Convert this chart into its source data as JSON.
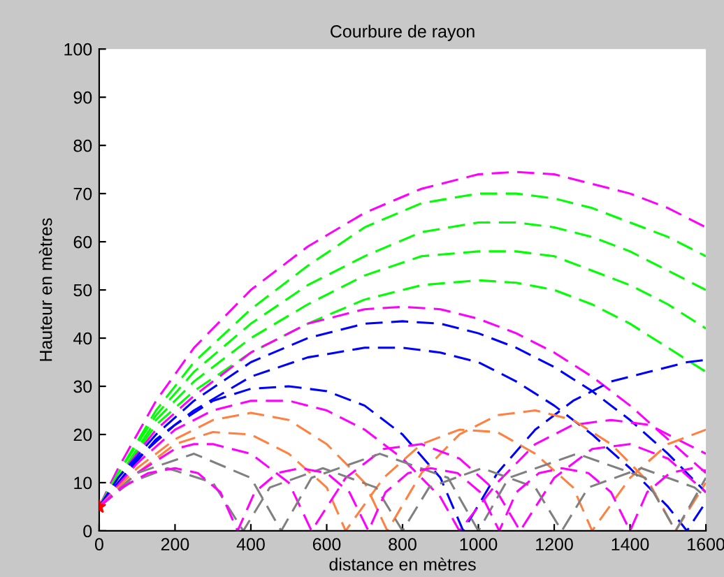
{
  "chart_data": {
    "type": "line",
    "title": "Courbure de rayon",
    "xlabel": "distance en mètres",
    "ylabel": "Hauteur en mètres",
    "xlim": [
      0,
      1600
    ],
    "ylim": [
      0,
      100
    ],
    "xticks": [
      0,
      200,
      400,
      600,
      800,
      1000,
      1200,
      1400,
      1600
    ],
    "yticks": [
      0,
      10,
      20,
      30,
      40,
      50,
      60,
      70,
      80,
      90,
      100
    ],
    "grid": false,
    "legend": false,
    "line_style": "dashed",
    "series": [
      {
        "color": "#ff00ff",
        "x": [
          0,
          50,
          150,
          250,
          400,
          550,
          700,
          850,
          1000,
          1100,
          1200,
          1300,
          1400,
          1500,
          1600
        ],
        "values": [
          5,
          13,
          27,
          38,
          50,
          59,
          66,
          71,
          74,
          74.5,
          74,
          72,
          70,
          67,
          63
        ]
      },
      {
        "color": "#00ff00",
        "x": [
          0,
          50,
          150,
          250,
          400,
          550,
          700,
          850,
          1000,
          1100,
          1200,
          1300,
          1400,
          1500,
          1600
        ],
        "values": [
          5,
          12,
          25,
          35,
          46,
          55,
          63,
          68,
          70,
          70,
          69,
          67,
          64,
          61,
          57
        ]
      },
      {
        "color": "#00ff00",
        "x": [
          0,
          50,
          150,
          250,
          400,
          550,
          700,
          850,
          1000,
          1100,
          1200,
          1300,
          1400,
          1500,
          1600
        ],
        "values": [
          5,
          12,
          24,
          33,
          43,
          51,
          57,
          62,
          64,
          64,
          63,
          61,
          58,
          54,
          50
        ]
      },
      {
        "color": "#00ff00",
        "x": [
          0,
          50,
          150,
          250,
          400,
          550,
          700,
          850,
          1000,
          1100,
          1200,
          1300,
          1400,
          1500,
          1600
        ],
        "values": [
          5,
          11,
          23,
          31,
          40,
          47,
          53,
          57,
          58,
          58,
          57,
          54,
          51,
          47,
          42
        ]
      },
      {
        "color": "#00ff00",
        "x": [
          0,
          50,
          150,
          250,
          400,
          550,
          700,
          850,
          1000,
          1100,
          1200,
          1300,
          1400,
          1500,
          1600
        ],
        "values": [
          5,
          11,
          22,
          29,
          37,
          43,
          48,
          51,
          52,
          51.5,
          50,
          47,
          43,
          38,
          33
        ]
      },
      {
        "color": "#ff00ff",
        "x": [
          0,
          50,
          150,
          250,
          400,
          550,
          700,
          800,
          900,
          1000,
          1100,
          1200,
          1300,
          1400,
          1500,
          1600
        ],
        "values": [
          5,
          11,
          21,
          28,
          37,
          43,
          46,
          46.5,
          46,
          44,
          41,
          37,
          32,
          26,
          19,
          12
        ]
      },
      {
        "color": "#0000ff",
        "x": [
          0,
          50,
          150,
          250,
          400,
          550,
          700,
          800,
          900,
          1000,
          1100,
          1200,
          1300,
          1400,
          1500,
          1600
        ],
        "values": [
          5,
          11,
          20,
          27,
          35,
          40,
          43,
          43.5,
          43,
          41,
          38,
          34,
          29,
          23,
          16,
          8
        ]
      },
      {
        "color": "#0000ff",
        "x": [
          0,
          50,
          150,
          250,
          400,
          550,
          700,
          800,
          900,
          1000,
          1100,
          1200,
          1300,
          1400,
          1500,
          1550,
          1600
        ],
        "values": [
          5,
          10,
          19,
          25,
          32,
          36,
          38,
          38,
          37,
          35,
          31,
          26,
          20,
          13,
          5,
          0,
          6
        ]
      },
      {
        "color": "#0000ff",
        "x": [
          0,
          100,
          200,
          300,
          400,
          500,
          600,
          700,
          800,
          900,
          960,
          1050,
          1150,
          1250,
          1350,
          1450,
          1550,
          1600
        ],
        "values": [
          5,
          15,
          22,
          27,
          29.5,
          30,
          29,
          26,
          20,
          11,
          0,
          12,
          21,
          27,
          31,
          33,
          35,
          35.5
        ]
      },
      {
        "color": "#ff00ff",
        "x": [
          0,
          100,
          200,
          300,
          400,
          500,
          600,
          700,
          800,
          900,
          950,
          1050,
          1150,
          1250,
          1350,
          1450,
          1550,
          1600
        ],
        "values": [
          5,
          14,
          21,
          25,
          27,
          27,
          25,
          21,
          15,
          7,
          0,
          10,
          18,
          22,
          23,
          22,
          18,
          16
        ]
      },
      {
        "color": "#ff8040",
        "x": [
          0,
          100,
          200,
          300,
          400,
          500,
          600,
          700,
          760,
          850,
          950,
          1050,
          1150,
          1250,
          1350,
          1450,
          1520,
          1600
        ],
        "values": [
          5,
          13,
          19,
          23,
          24.5,
          23,
          18,
          10,
          0,
          12,
          20,
          24,
          25,
          23,
          18,
          10,
          0,
          10
        ]
      },
      {
        "color": "#ff8040",
        "x": [
          0,
          100,
          200,
          300,
          400,
          500,
          600,
          650,
          750,
          850,
          950,
          1050,
          1150,
          1250,
          1300,
          1400,
          1500,
          1600
        ],
        "values": [
          5,
          12,
          18,
          20.5,
          20,
          16,
          9,
          0,
          11,
          18,
          21,
          20.5,
          16,
          9,
          0,
          11,
          18,
          21
        ]
      },
      {
        "color": "#ff00ff",
        "x": [
          0,
          100,
          200,
          250,
          300,
          400,
          500,
          560,
          650,
          750,
          850,
          950,
          1050,
          1110,
          1200,
          1300,
          1400,
          1500,
          1600
        ],
        "values": [
          5,
          12,
          17,
          18,
          18,
          16,
          10,
          0,
          11,
          17,
          18,
          15,
          8,
          0,
          11,
          17,
          18,
          15,
          8
        ]
      },
      {
        "color": "#808080",
        "x": [
          0,
          100,
          250,
          400,
          480,
          560,
          740,
          920,
          1000,
          1080,
          1260,
          1440,
          1520,
          1600
        ],
        "values": [
          5,
          12,
          16,
          11,
          0,
          11,
          16,
          11,
          0,
          11,
          16,
          11,
          0,
          11
        ]
      },
      {
        "color": "#808080",
        "x": [
          0,
          80,
          180,
          300,
          380,
          450,
          590,
          730,
          800,
          870,
          1010,
          1150,
          1220,
          1290,
          1430,
          1570,
          1600
        ],
        "values": [
          5,
          10,
          13,
          10,
          0,
          9,
          13,
          9,
          0,
          9,
          13,
          9,
          0,
          9,
          13,
          9,
          7
        ]
      },
      {
        "color": "#ff00ff",
        "x": [
          0,
          60,
          130,
          200,
          260,
          320,
          365,
          410,
          470,
          530,
          600,
          660,
          710,
          755,
          815,
          875,
          945,
          1005,
          1055,
          1100,
          1160,
          1220,
          1290,
          1350,
          1400,
          1445,
          1505,
          1565,
          1600
        ],
        "values": [
          5,
          9,
          12,
          13,
          12,
          8,
          0,
          8,
          12,
          13,
          12,
          8,
          0,
          8,
          12,
          13,
          12,
          8,
          0,
          8,
          12,
          13,
          12,
          8,
          0,
          8,
          12,
          13,
          12.5
        ]
      },
      {
        "type": "scatter",
        "marker": "star",
        "color": "#ff0000",
        "x": [
          0
        ],
        "values": [
          5
        ]
      }
    ]
  }
}
